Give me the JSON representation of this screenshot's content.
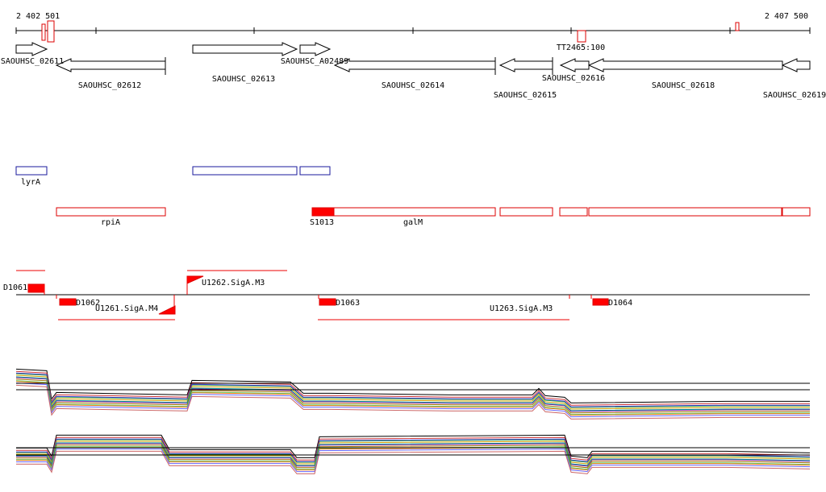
{
  "header": {
    "start": "2 402 501",
    "end": "2 407 500"
  },
  "terminator": "TT2465:100",
  "genes": [
    "SAOUHSC_02611",
    "SAOUHSC_02612",
    "SAOUHSC_02613",
    "SAOUHSC_A02489",
    "SAOUHSC_02614",
    "SAOUHSC_02615",
    "SAOUHSC_02616",
    "SAOUHSC_02618",
    "SAOUHSC_02619"
  ],
  "blue_features": [
    "lyrA"
  ],
  "red_features": [
    "rpiA",
    "S1013",
    "galM"
  ],
  "promoters": [
    "D1061",
    "D1062",
    "U1261.SigA.M4",
    "U1262.SigA.M3",
    "D1063",
    "U1263.SigA.M3",
    "D1064"
  ]
}
